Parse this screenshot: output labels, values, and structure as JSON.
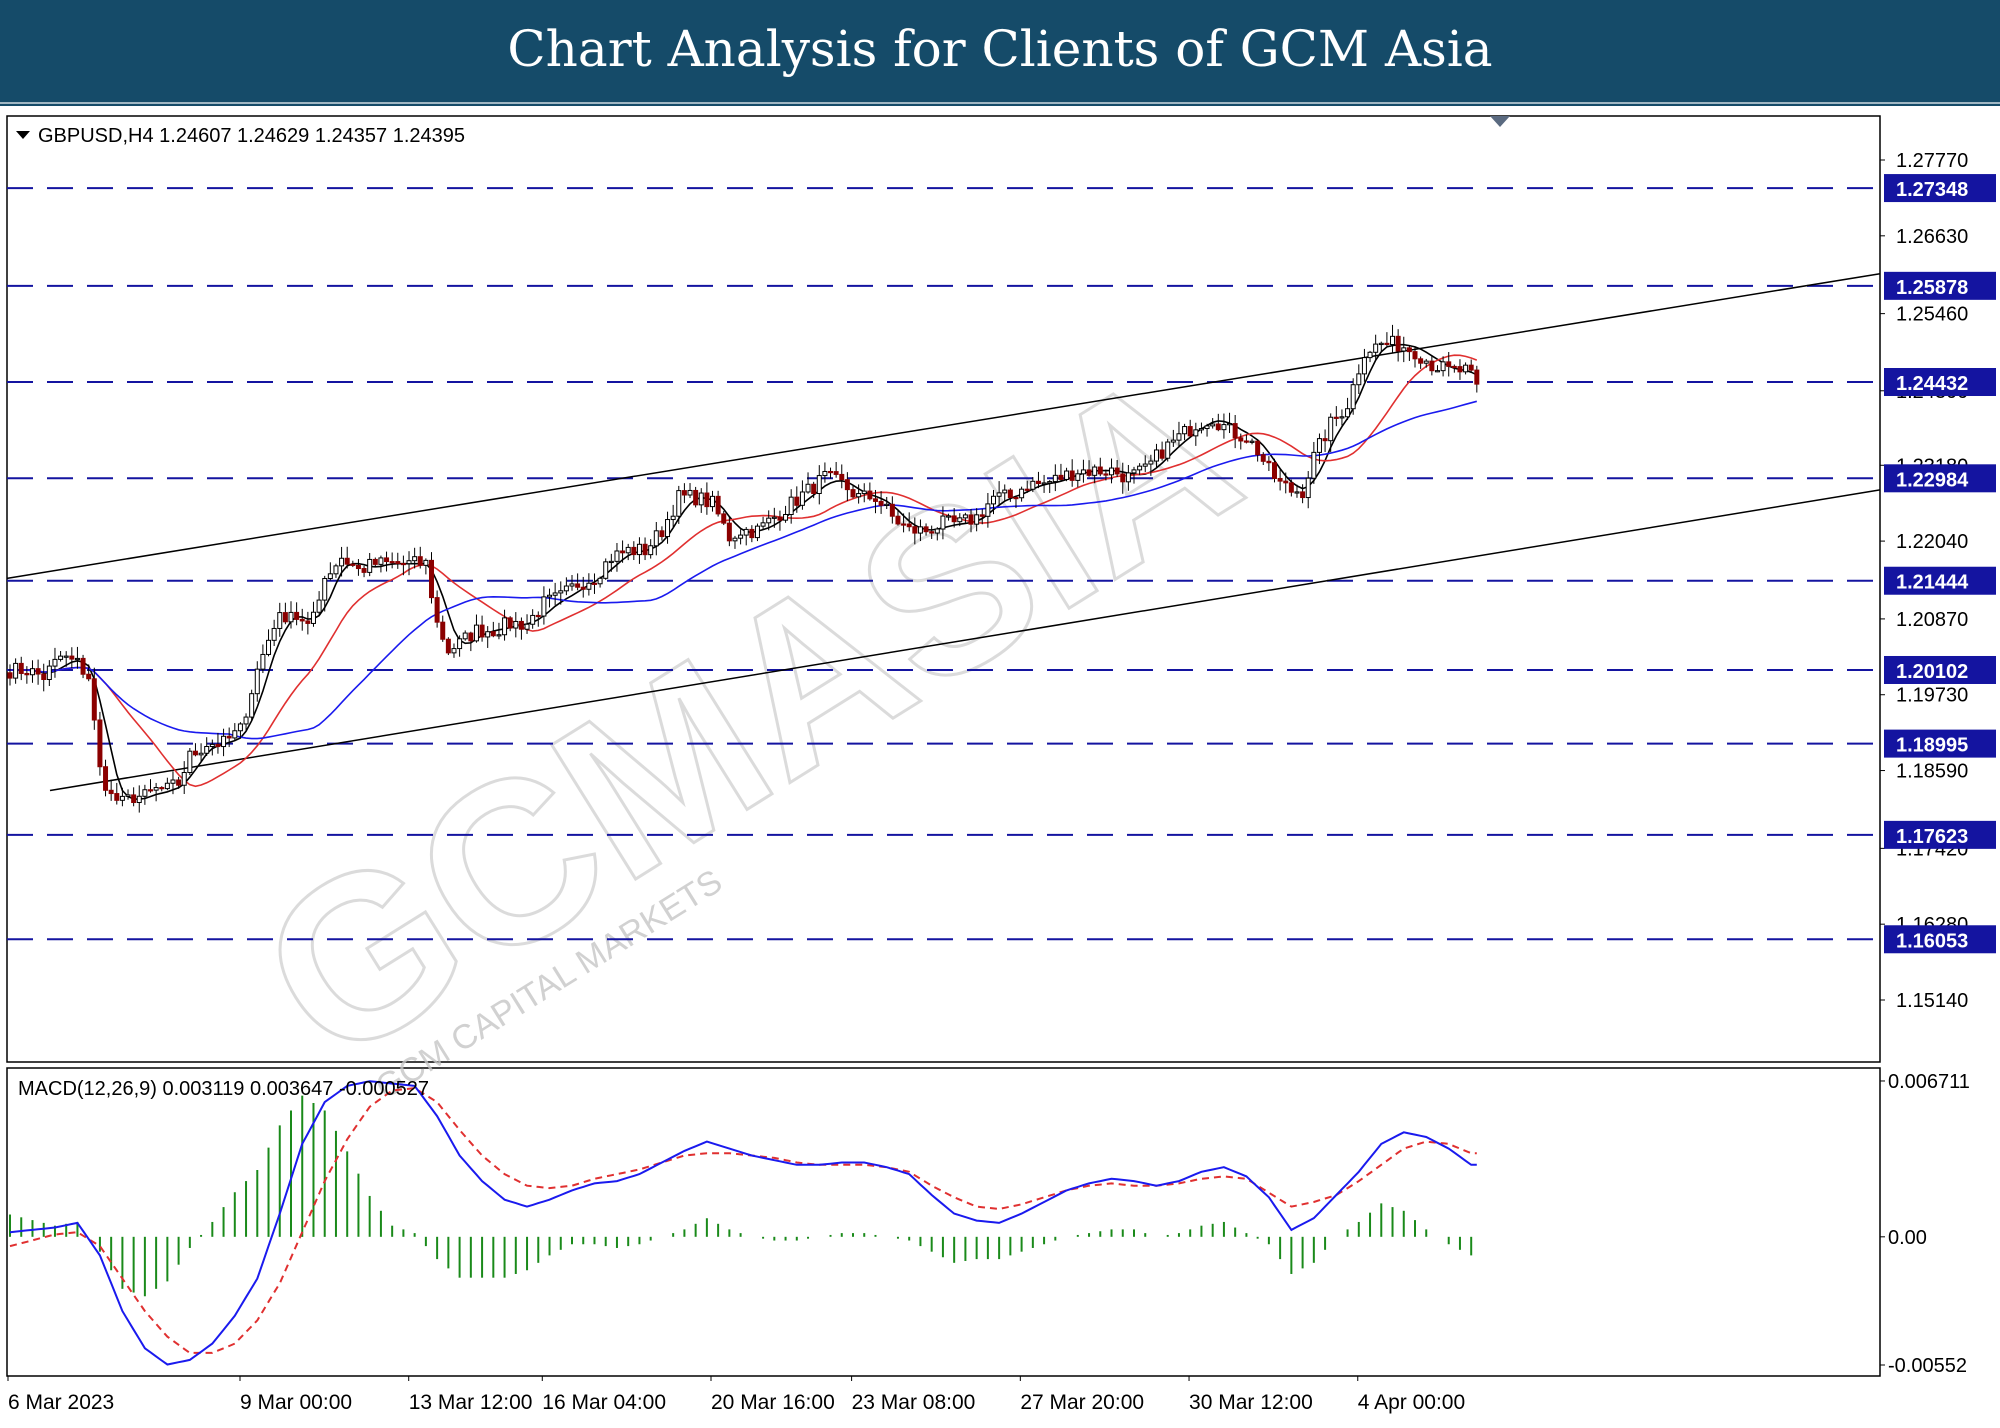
{
  "page": {
    "title": "Chart Analysis for Clients of GCM Asia",
    "banner_color": "#154b69",
    "watermark_main": "GCMASIA",
    "watermark_sub": "GCM CAPITAL MARKETS"
  },
  "chart_data": [
    {
      "type": "candlestick",
      "symbol": "GBPUSD",
      "timeframe": "H4",
      "header_prefix": "GBPUSD,H4",
      "ohlc_last": [
        "1.24607",
        "1.24629",
        "1.24357",
        "1.24395"
      ],
      "ylim": [
        1.1514,
        1.2777
      ],
      "y_ticks": [
        "1.27770",
        "1.26630",
        "1.25460",
        "1.24300",
        "1.23180",
        "1.22040",
        "1.20870",
        "1.19730",
        "1.18590",
        "1.17420",
        "1.16280",
        "1.15140"
      ],
      "x_ticks": [
        "6 Mar 2023",
        "9 Mar 00:00",
        "13 Mar 12:00",
        "16 Mar 04:00",
        "20 Mar 16:00",
        "23 Mar 08:00",
        "27 Mar 20:00",
        "30 Mar 12:00",
        "4 Apr 00:00"
      ],
      "levels": [
        "1.27348",
        "1.25878",
        "1.24432",
        "1.22984",
        "1.21444",
        "1.20102",
        "1.18995",
        "1.17623",
        "1.16053"
      ],
      "level_color": "#1414a0",
      "channel": {
        "upper": [
          [
            "6 Mar 2023",
            1.2148
          ],
          [
            "end",
            1.2606
          ]
        ],
        "lower": [
          [
            "6 Mar 2023",
            1.1829
          ],
          [
            "end",
            1.2281
          ]
        ]
      },
      "close_path": [
        [
          0,
          1.201
        ],
        [
          3,
          1.201
        ],
        [
          6,
          1.2
        ],
        [
          9,
          1.203
        ],
        [
          12,
          1.202
        ],
        [
          14,
          1.2
        ],
        [
          16,
          1.186
        ],
        [
          18,
          1.182
        ],
        [
          20,
          1.181
        ],
        [
          22,
          1.182
        ],
        [
          24,
          1.182
        ],
        [
          26,
          1.183
        ],
        [
          28,
          1.183
        ],
        [
          30,
          1.184
        ],
        [
          32,
          1.188
        ],
        [
          35,
          1.19
        ],
        [
          38,
          1.19
        ],
        [
          41,
          1.192
        ],
        [
          44,
          1.201
        ],
        [
          47,
          1.208
        ],
        [
          50,
          1.21
        ],
        [
          53,
          1.207
        ],
        [
          56,
          1.215
        ],
        [
          59,
          1.218
        ],
        [
          62,
          1.216
        ],
        [
          65,
          1.217
        ],
        [
          68,
          1.217
        ],
        [
          71,
          1.217
        ],
        [
          74,
          1.217
        ],
        [
          76,
          1.208
        ],
        [
          78,
          1.204
        ],
        [
          80,
          1.205
        ],
        [
          83,
          1.207
        ],
        [
          86,
          1.207
        ],
        [
          89,
          1.208
        ],
        [
          92,
          1.208
        ],
        [
          95,
          1.211
        ],
        [
          98,
          1.212
        ],
        [
          101,
          1.214
        ],
        [
          104,
          1.215
        ],
        [
          107,
          1.218
        ],
        [
          110,
          1.219
        ],
        [
          113,
          1.219
        ],
        [
          116,
          1.222
        ],
        [
          119,
          1.227
        ],
        [
          122,
          1.227
        ],
        [
          125,
          1.226
        ],
        [
          128,
          1.221
        ],
        [
          130,
          1.222
        ],
        [
          133,
          1.222
        ],
        [
          136,
          1.224
        ],
        [
          139,
          1.226
        ],
        [
          142,
          1.228
        ],
        [
          145,
          1.23
        ],
        [
          148,
          1.229
        ],
        [
          151,
          1.227
        ],
        [
          154,
          1.227
        ],
        [
          157,
          1.224
        ],
        [
          160,
          1.222
        ],
        [
          163,
          1.222
        ],
        [
          166,
          1.223
        ],
        [
          169,
          1.223
        ],
        [
          172,
          1.224
        ],
        [
          175,
          1.227
        ],
        [
          178,
          1.227
        ],
        [
          181,
          1.229
        ],
        [
          184,
          1.229
        ],
        [
          187,
          1.23
        ],
        [
          190,
          1.231
        ],
        [
          193,
          1.231
        ],
        [
          196,
          1.231
        ],
        [
          199,
          1.23
        ],
        [
          202,
          1.231
        ],
        [
          205,
          1.234
        ],
        [
          208,
          1.236
        ],
        [
          211,
          1.238
        ],
        [
          214,
          1.239
        ],
        [
          217,
          1.237
        ],
        [
          220,
          1.236
        ],
        [
          222,
          1.234
        ],
        [
          224,
          1.231
        ],
        [
          226,
          1.229
        ],
        [
          228,
          1.228
        ],
        [
          230,
          1.228
        ],
        [
          232,
          1.233
        ],
        [
          235,
          1.238
        ],
        [
          238,
          1.241
        ],
        [
          241,
          1.249
        ],
        [
          244,
          1.25
        ],
        [
          247,
          1.25
        ],
        [
          250,
          1.249
        ],
        [
          253,
          1.247
        ],
        [
          256,
          1.246
        ],
        [
          259,
          1.246
        ],
        [
          261,
          1.244
        ]
      ],
      "moving_averages": [
        {
          "color": "#000000",
          "period": 5
        },
        {
          "color": "#e03030",
          "period": 18
        },
        {
          "color": "#1a1aee",
          "period": 40
        }
      ],
      "candle_up_color": "#000000",
      "candle_down_color": "#8b0000"
    },
    {
      "type": "line",
      "indicator": "MACD",
      "header": "MACD(12,26,9) 0.003119 0.003647 -0.000527",
      "ylim": [
        -0.00552,
        0.00671
      ],
      "y_ticks": [
        "0.006711",
        "0.00",
        "-0.00552"
      ],
      "series": [
        {
          "role": "macd",
          "color": "#1a1aee",
          "style": "solid"
        },
        {
          "role": "signal",
          "color": "#e03030",
          "style": "dashed"
        },
        {
          "role": "histogram",
          "color": "#1a8a1a",
          "style": "bars"
        }
      ],
      "macd_path": [
        [
          0,
          0.0002
        ],
        [
          8,
          0.0004
        ],
        [
          12,
          0.0006
        ],
        [
          16,
          -0.0008
        ],
        [
          20,
          -0.0032
        ],
        [
          24,
          -0.0048
        ],
        [
          28,
          -0.0055
        ],
        [
          32,
          -0.0053
        ],
        [
          36,
          -0.0046
        ],
        [
          40,
          -0.0034
        ],
        [
          44,
          -0.0018
        ],
        [
          48,
          0.001
        ],
        [
          52,
          0.004
        ],
        [
          56,
          0.0058
        ],
        [
          60,
          0.0065
        ],
        [
          64,
          0.0067
        ],
        [
          68,
          0.0066
        ],
        [
          72,
          0.0065
        ],
        [
          76,
          0.0052
        ],
        [
          80,
          0.0035
        ],
        [
          84,
          0.0024
        ],
        [
          88,
          0.0016
        ],
        [
          92,
          0.0013
        ],
        [
          96,
          0.0016
        ],
        [
          100,
          0.002
        ],
        [
          104,
          0.0023
        ],
        [
          108,
          0.0024
        ],
        [
          112,
          0.0027
        ],
        [
          116,
          0.0032
        ],
        [
          120,
          0.0037
        ],
        [
          124,
          0.0041
        ],
        [
          128,
          0.0038
        ],
        [
          132,
          0.0035
        ],
        [
          136,
          0.0033
        ],
        [
          140,
          0.0031
        ],
        [
          144,
          0.0031
        ],
        [
          148,
          0.0032
        ],
        [
          152,
          0.0032
        ],
        [
          156,
          0.003
        ],
        [
          160,
          0.0027
        ],
        [
          164,
          0.0018
        ],
        [
          168,
          0.001
        ],
        [
          172,
          0.0007
        ],
        [
          176,
          0.0006
        ],
        [
          180,
          0.001
        ],
        [
          184,
          0.0015
        ],
        [
          188,
          0.002
        ],
        [
          192,
          0.0023
        ],
        [
          196,
          0.0025
        ],
        [
          200,
          0.0024
        ],
        [
          204,
          0.0022
        ],
        [
          208,
          0.0024
        ],
        [
          212,
          0.0028
        ],
        [
          216,
          0.003
        ],
        [
          220,
          0.0026
        ],
        [
          224,
          0.0017
        ],
        [
          228,
          0.0003
        ],
        [
          232,
          0.0008
        ],
        [
          236,
          0.0018
        ],
        [
          240,
          0.0028
        ],
        [
          244,
          0.004
        ],
        [
          248,
          0.0045
        ],
        [
          252,
          0.0043
        ],
        [
          256,
          0.0038
        ],
        [
          260,
          0.0031
        ]
      ],
      "signal_path": [
        [
          0,
          -0.0004
        ],
        [
          8,
          0.0001
        ],
        [
          12,
          0.0002
        ],
        [
          16,
          -0.0004
        ],
        [
          20,
          -0.0018
        ],
        [
          24,
          -0.0032
        ],
        [
          28,
          -0.0043
        ],
        [
          32,
          -0.005
        ],
        [
          36,
          -0.005
        ],
        [
          40,
          -0.0046
        ],
        [
          44,
          -0.0036
        ],
        [
          48,
          -0.002
        ],
        [
          52,
          0.0002
        ],
        [
          56,
          0.0024
        ],
        [
          60,
          0.0042
        ],
        [
          64,
          0.0056
        ],
        [
          68,
          0.0063
        ],
        [
          72,
          0.0064
        ],
        [
          76,
          0.0058
        ],
        [
          80,
          0.0046
        ],
        [
          84,
          0.0035
        ],
        [
          88,
          0.0027
        ],
        [
          92,
          0.0022
        ],
        [
          96,
          0.0021
        ],
        [
          100,
          0.0022
        ],
        [
          104,
          0.0025
        ],
        [
          108,
          0.0027
        ],
        [
          112,
          0.0029
        ],
        [
          116,
          0.0032
        ],
        [
          120,
          0.0035
        ],
        [
          124,
          0.0036
        ],
        [
          128,
          0.0036
        ],
        [
          132,
          0.0035
        ],
        [
          136,
          0.0034
        ],
        [
          140,
          0.0032
        ],
        [
          144,
          0.0031
        ],
        [
          148,
          0.0031
        ],
        [
          152,
          0.0031
        ],
        [
          156,
          0.003
        ],
        [
          160,
          0.0028
        ],
        [
          164,
          0.0022
        ],
        [
          168,
          0.0017
        ],
        [
          172,
          0.0013
        ],
        [
          176,
          0.0012
        ],
        [
          180,
          0.0014
        ],
        [
          184,
          0.0017
        ],
        [
          188,
          0.002
        ],
        [
          192,
          0.0022
        ],
        [
          196,
          0.0023
        ],
        [
          200,
          0.0022
        ],
        [
          204,
          0.0022
        ],
        [
          208,
          0.0023
        ],
        [
          212,
          0.0025
        ],
        [
          216,
          0.0026
        ],
        [
          220,
          0.0025
        ],
        [
          224,
          0.0019
        ],
        [
          228,
          0.0013
        ],
        [
          232,
          0.0015
        ],
        [
          236,
          0.0018
        ],
        [
          240,
          0.0024
        ],
        [
          244,
          0.0031
        ],
        [
          248,
          0.0038
        ],
        [
          252,
          0.0041
        ],
        [
          256,
          0.004
        ],
        [
          260,
          0.0036
        ]
      ]
    }
  ]
}
